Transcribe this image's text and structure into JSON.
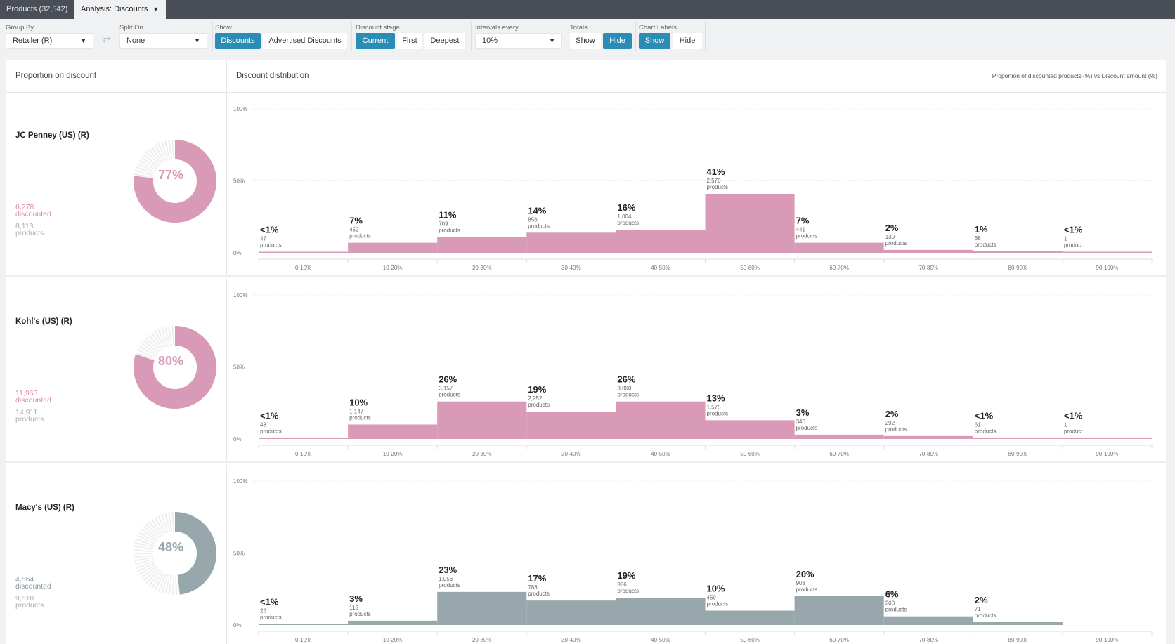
{
  "tabs": {
    "products": "Products (32,542)",
    "analysis": "Analysis: Discounts"
  },
  "toolbar": {
    "group_by": {
      "label": "Group By",
      "value": "Retailer (R)"
    },
    "split_on": {
      "label": "Split On",
      "value": "None"
    },
    "show": {
      "label": "Show",
      "options": [
        "Discounts",
        "Advertised Discounts"
      ],
      "selected": "Discounts"
    },
    "discount_stage": {
      "label": "Discount stage",
      "options": [
        "Current",
        "First",
        "Deepest"
      ],
      "selected": "Current"
    },
    "intervals": {
      "label": "Intervals every",
      "value": "10%"
    },
    "totals": {
      "label": "Totals",
      "options": [
        "Show",
        "Hide"
      ],
      "selected": "Hide"
    },
    "chart_labels": {
      "label": "Chart Labels",
      "options": [
        "Show",
        "Hide"
      ],
      "selected": "Show"
    }
  },
  "headers": {
    "left": "Proportion on discount",
    "right": "Discount distribution",
    "right_note": "Proportion of discounted products (%) vs Discount amount (%)"
  },
  "retailers": [
    {
      "name": "JC Penney (US) (R)",
      "percent_label": "77%",
      "percent": 77,
      "discounted": "6,278",
      "discounted_label": "discounted",
      "products": "8,113",
      "products_label": "products"
    },
    {
      "name": "Kohl's (US) (R)",
      "percent_label": "80%",
      "percent": 80,
      "discounted": "11,963",
      "discounted_label": "discounted",
      "products": "14,911",
      "products_label": "products"
    },
    {
      "name": "Macy's (US) (R)",
      "percent_label": "48%",
      "percent": 48,
      "discounted": "4,564",
      "discounted_label": "discounted",
      "products": "9,518",
      "products_label": "products"
    }
  ],
  "colors": {
    "pink": "#d89ab6",
    "pink_text": "#e08aa8",
    "grey": "#97a7ac",
    "grey_text": "#8b9ba1",
    "accent": "#2a8db5"
  },
  "chart_data": [
    {
      "type": "bar",
      "categories": [
        "0-10%",
        "10-20%",
        "20-30%",
        "30-40%",
        "40-50%",
        "50-60%",
        "60-70%",
        "70-80%",
        "80-90%",
        "90-100%"
      ],
      "series": [
        {
          "name": "JC Penney (US) (R)",
          "values": [
            0.7,
            7,
            11,
            14,
            16,
            41,
            7,
            2,
            1,
            0.1
          ]
        }
      ],
      "labels": [
        "<1%",
        "7%",
        "11%",
        "14%",
        "16%",
        "41%",
        "7%",
        "2%",
        "1%",
        "<1%"
      ],
      "counts": [
        "47",
        "452",
        "709",
        "856",
        "1,004",
        "2,570",
        "441",
        "130",
        "68",
        "1"
      ],
      "units": [
        "products",
        "products",
        "products",
        "products",
        "products",
        "products",
        "products",
        "products",
        "products",
        "product"
      ],
      "yticks": [
        "100%",
        "50%",
        "0%"
      ],
      "ylim": [
        0,
        100
      ]
    },
    {
      "type": "bar",
      "categories": [
        "0-10%",
        "10-20%",
        "20-30%",
        "30-40%",
        "40-50%",
        "50-60%",
        "60-70%",
        "70-80%",
        "80-90%",
        "90-100%"
      ],
      "series": [
        {
          "name": "Kohl's (US) (R)",
          "values": [
            0.4,
            10,
            26,
            19,
            26,
            13,
            3,
            2,
            0.5,
            0.1
          ]
        }
      ],
      "labels": [
        "<1%",
        "10%",
        "26%",
        "19%",
        "26%",
        "13%",
        "3%",
        "2%",
        "<1%",
        "<1%"
      ],
      "counts": [
        "48",
        "1,147",
        "3,157",
        "2,252",
        "3,090",
        "1,575",
        "340",
        "292",
        "61",
        "1"
      ],
      "units": [
        "products",
        "products",
        "products",
        "products",
        "products",
        "products",
        "products",
        "products",
        "products",
        "product"
      ],
      "yticks": [
        "100%",
        "50%",
        "0%"
      ],
      "ylim": [
        0,
        100
      ]
    },
    {
      "type": "bar",
      "categories": [
        "0-10%",
        "10-20%",
        "20-30%",
        "30-40%",
        "40-50%",
        "50-60%",
        "60-70%",
        "70-80%",
        "80-90%",
        "90-100%"
      ],
      "series": [
        {
          "name": "Macy's (US) (R)",
          "values": [
            0.6,
            3,
            23,
            17,
            19,
            10,
            20,
            6,
            2,
            0
          ]
        }
      ],
      "labels": [
        "<1%",
        "3%",
        "23%",
        "17%",
        "19%",
        "10%",
        "20%",
        "6%",
        "2%",
        ""
      ],
      "counts": [
        "26",
        "115",
        "1,056",
        "783",
        "886",
        "459",
        "908",
        "260",
        "71",
        ""
      ],
      "units": [
        "products",
        "products",
        "products",
        "products",
        "products",
        "products",
        "products",
        "products",
        "products",
        ""
      ],
      "yticks": [
        "100%",
        "50%",
        "0%"
      ],
      "ylim": [
        0,
        100
      ]
    }
  ]
}
